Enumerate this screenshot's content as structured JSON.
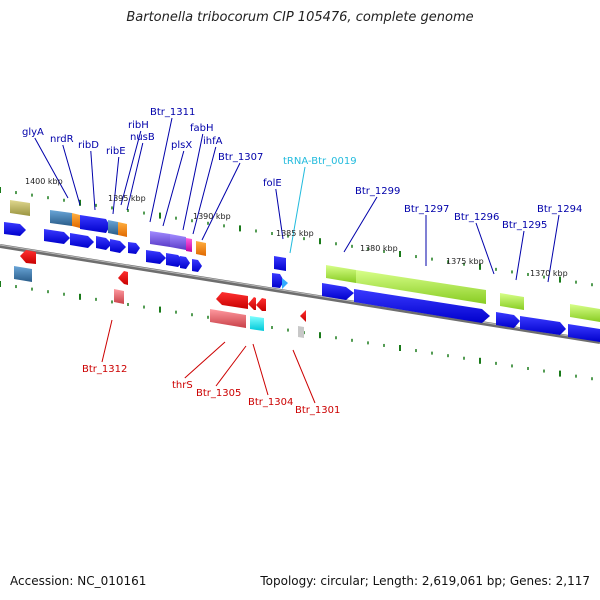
{
  "title": "Bartonella tribocorum CIP 105476, complete genome",
  "footer": {
    "accession": "Accession: NC_010161",
    "summary": "Topology: circular; Length: 2,619,061 bp; Genes: 2,117"
  },
  "colors": {
    "top_label": "#0000aa",
    "bottom_label": "#cc0000",
    "trna_label": "#22bbdd",
    "backbone": "#808080",
    "tick": "#1a7a1a"
  },
  "kbp_ticks": [
    "1400 kbp",
    "1395 kbp",
    "1390 kbp",
    "1385 kbp",
    "1380 kbp",
    "1375 kbp",
    "1370 kbp"
  ],
  "top_labels": [
    "glyA",
    "nrdR",
    "ribD",
    "ribE",
    "ribH",
    "nusB",
    "Btr_1311",
    "plsX",
    "fabH",
    "ihfA",
    "Btr_1307",
    "folE",
    "tRNA-Btr_0019",
    "Btr_1299",
    "Btr_1297",
    "Btr_1296",
    "Btr_1295",
    "Btr_1294"
  ],
  "bottom_labels": [
    "Btr_1312",
    "thrS",
    "Btr_1305",
    "Btr_1304",
    "Btr_1301"
  ]
}
